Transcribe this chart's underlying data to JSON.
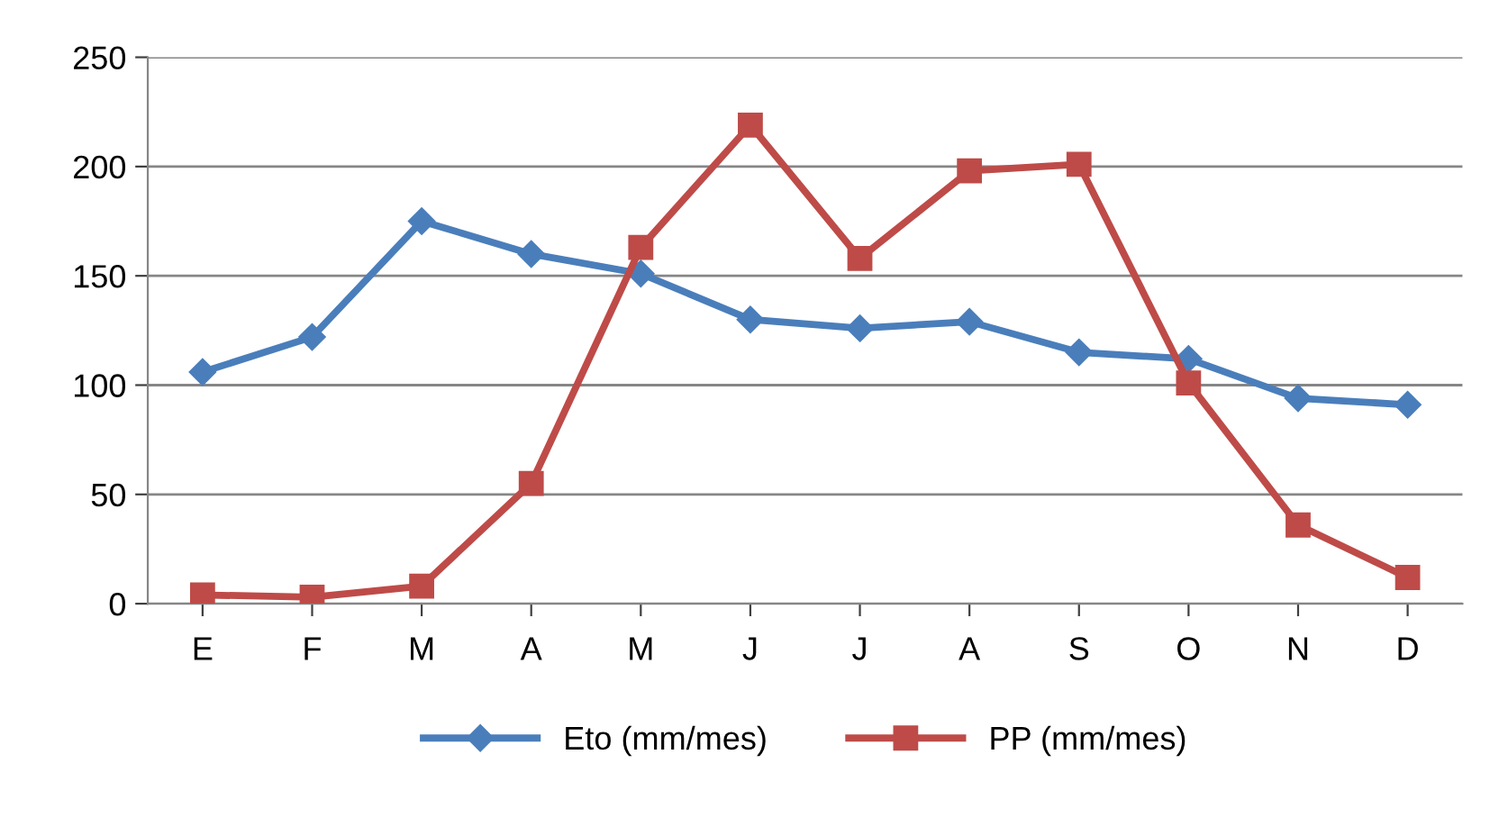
{
  "chart_data": {
    "type": "line",
    "categories": [
      "E",
      "F",
      "M",
      "A",
      "M",
      "J",
      "J",
      "A",
      "S",
      "O",
      "N",
      "D"
    ],
    "series": [
      {
        "name": "Eto (mm/mes)",
        "color": "#4a7ebb",
        "marker": "diamond",
        "values": [
          106,
          122,
          175,
          160,
          151,
          130,
          126,
          129,
          115,
          112,
          94,
          91
        ]
      },
      {
        "name": "PP (mm/mes)",
        "color": "#be4b48",
        "marker": "square",
        "values": [
          4,
          3,
          8,
          55,
          163,
          219,
          158,
          198,
          201,
          101,
          36,
          12
        ]
      }
    ],
    "ylim": [
      0,
      250
    ],
    "yticks": [
      0,
      50,
      100,
      150,
      200,
      250
    ],
    "grid": "y",
    "legend": "bottom",
    "line_style": "solid"
  }
}
